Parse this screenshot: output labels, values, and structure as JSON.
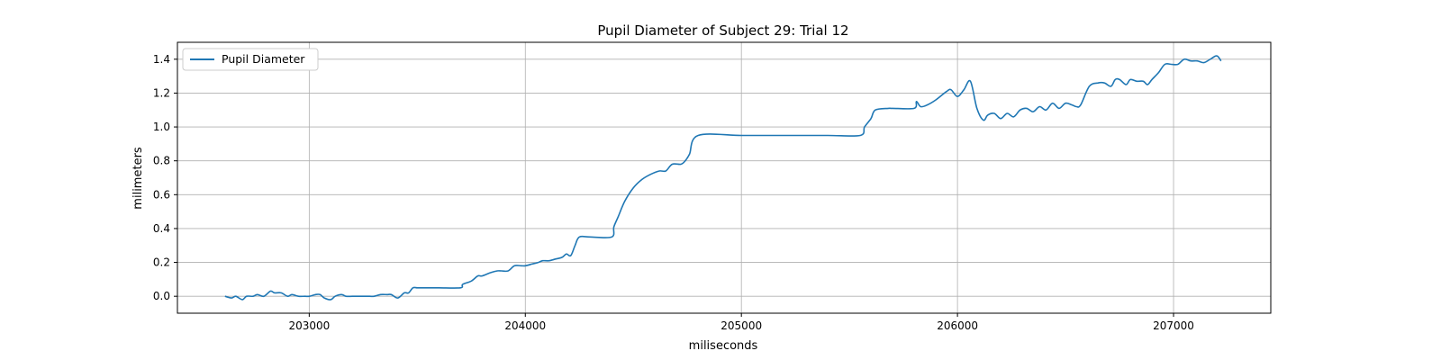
{
  "chart_data": {
    "type": "line",
    "title": "Pupil Diameter of Subject 29: Trial 12",
    "xlabel": "miliseconds",
    "ylabel": "milimeters",
    "xlim": [
      202390,
      207450
    ],
    "ylim": [
      -0.1,
      1.5
    ],
    "xticks": [
      203000,
      204000,
      205000,
      206000,
      207000
    ],
    "yticks": [
      0.0,
      0.2,
      0.4,
      0.6,
      0.8,
      1.0,
      1.2,
      1.4
    ],
    "ytick_labels": [
      "0.0",
      "0.2",
      "0.4",
      "0.6",
      "0.8",
      "1.0",
      "1.2",
      "1.4"
    ],
    "grid": true,
    "legend_position": "upper-left",
    "series": [
      {
        "name": "Pupil Diameter",
        "color": "#1f77b4",
        "x": [
          202610,
          202640,
          202660,
          202690,
          202710,
          202740,
          202760,
          202790,
          202820,
          202840,
          202870,
          202900,
          202920,
          202950,
          202980,
          203000,
          203030,
          203050,
          203070,
          203100,
          203120,
          203150,
          203170,
          203200,
          203230,
          203250,
          203280,
          203300,
          203330,
          203360,
          203380,
          203410,
          203440,
          203460,
          203480,
          203500,
          203530,
          203600,
          203700,
          203710,
          203750,
          203780,
          203800,
          203840,
          203870,
          203890,
          203920,
          203950,
          203980,
          204000,
          204030,
          204060,
          204080,
          204110,
          204140,
          204170,
          204190,
          204210,
          204230,
          204250,
          204300,
          204400,
          204410,
          204430,
          204460,
          204500,
          204540,
          204580,
          204620,
          204650,
          204680,
          204720,
          204740,
          204760,
          204800,
          205000,
          205200,
          205400,
          205550,
          205570,
          205600,
          205620,
          205680,
          205700,
          205800,
          205810,
          205830,
          205860,
          205900,
          205950,
          205970,
          206000,
          206030,
          206060,
          206090,
          206120,
          206140,
          206170,
          206200,
          206230,
          206260,
          206290,
          206320,
          206350,
          206380,
          206410,
          206440,
          206470,
          206500,
          206530,
          206550,
          206570,
          206610,
          206650,
          206680,
          206710,
          206730,
          206750,
          206780,
          206800,
          206830,
          206860,
          206880,
          206900,
          206930,
          206960,
          206990,
          207020,
          207050,
          207080,
          207110,
          207140,
          207170,
          207200,
          207220
        ],
        "values": [
          0.0,
          -0.01,
          0.0,
          -0.02,
          0.0,
          0.0,
          0.01,
          0.0,
          0.03,
          0.02,
          0.02,
          0.0,
          0.01,
          0.0,
          0.0,
          0.0,
          0.01,
          0.01,
          -0.01,
          -0.02,
          0.0,
          0.01,
          0.0,
          0.0,
          0.0,
          0.0,
          0.0,
          0.0,
          0.01,
          0.01,
          0.01,
          -0.01,
          0.02,
          0.02,
          0.05,
          0.05,
          0.05,
          0.05,
          0.05,
          0.07,
          0.09,
          0.12,
          0.12,
          0.14,
          0.15,
          0.15,
          0.15,
          0.18,
          0.18,
          0.18,
          0.19,
          0.2,
          0.21,
          0.21,
          0.22,
          0.23,
          0.25,
          0.24,
          0.3,
          0.35,
          0.35,
          0.35,
          0.41,
          0.47,
          0.56,
          0.64,
          0.69,
          0.72,
          0.74,
          0.74,
          0.78,
          0.78,
          0.8,
          0.84,
          0.95,
          0.95,
          0.95,
          0.95,
          0.95,
          1.0,
          1.05,
          1.1,
          1.11,
          1.11,
          1.11,
          1.15,
          1.12,
          1.13,
          1.16,
          1.21,
          1.22,
          1.18,
          1.22,
          1.27,
          1.11,
          1.04,
          1.07,
          1.08,
          1.05,
          1.08,
          1.06,
          1.1,
          1.11,
          1.09,
          1.12,
          1.1,
          1.14,
          1.11,
          1.14,
          1.13,
          1.12,
          1.13,
          1.24,
          1.26,
          1.26,
          1.24,
          1.28,
          1.28,
          1.25,
          1.28,
          1.27,
          1.27,
          1.25,
          1.28,
          1.32,
          1.37,
          1.37,
          1.37,
          1.4,
          1.39,
          1.39,
          1.38,
          1.4,
          1.42,
          1.39
        ]
      }
    ]
  }
}
